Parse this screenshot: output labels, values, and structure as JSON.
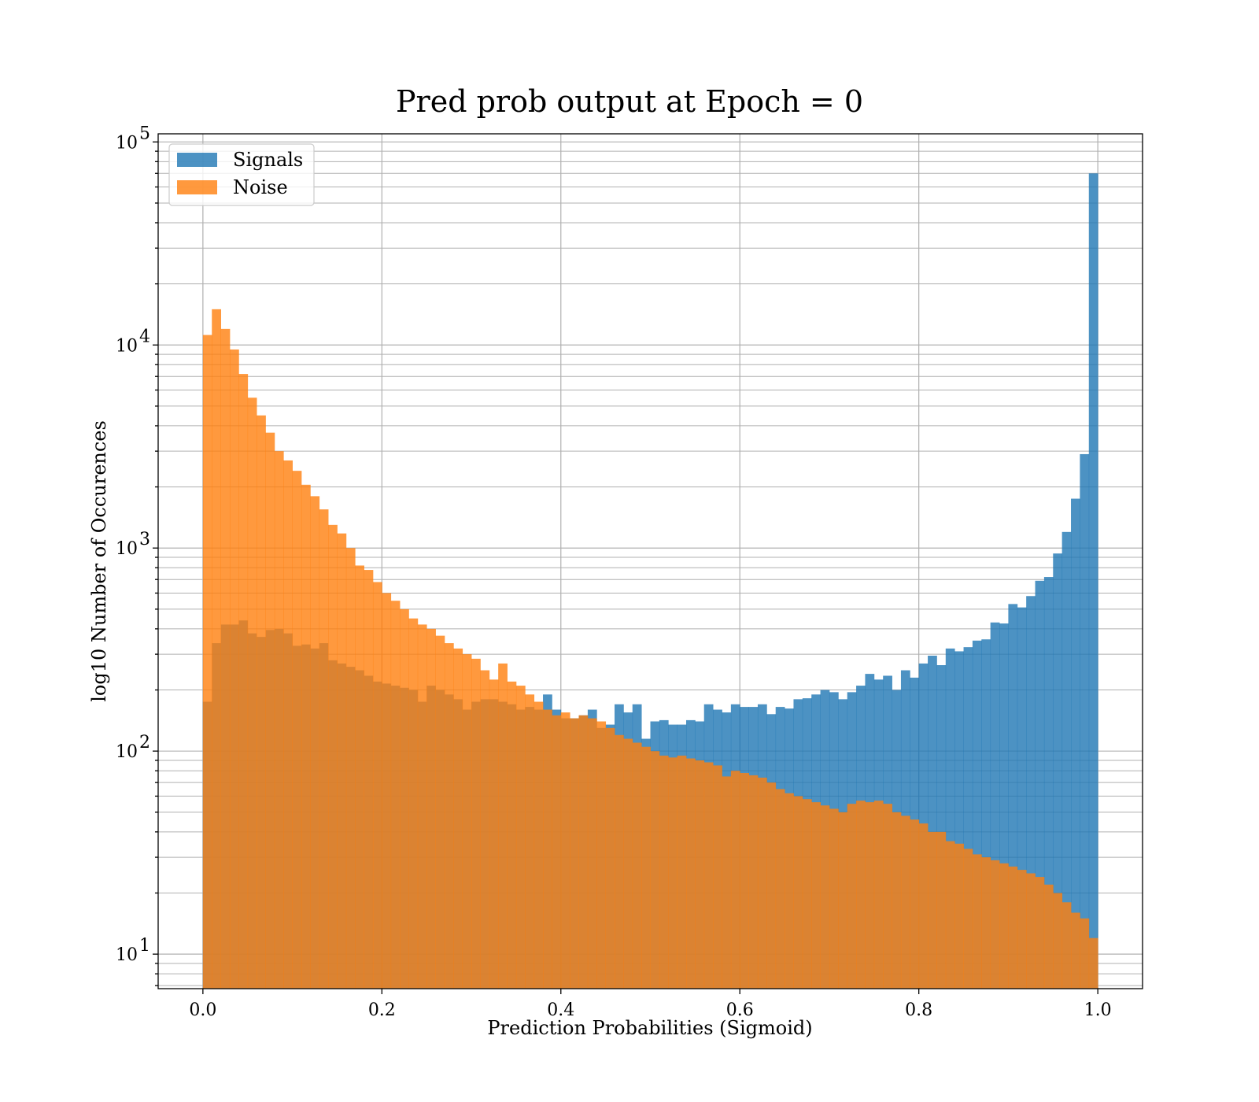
{
  "chart_data": {
    "type": "bar",
    "title": "Pred prob output at Epoch = 0",
    "xlabel": "Prediction Probabilities (Sigmoid)",
    "ylabel": "log10 Number of Occurences",
    "xlim": [
      -0.05,
      1.05
    ],
    "ylim_log10": [
      0.83,
      5.04
    ],
    "x_ticks": [
      0.0,
      0.2,
      0.4,
      0.6,
      0.8,
      1.0
    ],
    "x_tick_labels": [
      "0.0",
      "0.2",
      "0.4",
      "0.6",
      "0.8",
      "1.0"
    ],
    "y_ticks_log10": [
      1,
      2,
      3,
      4,
      5
    ],
    "y_tick_bases": [
      "10",
      "10",
      "10",
      "10",
      "10"
    ],
    "y_tick_exponents": [
      "1",
      "2",
      "3",
      "4",
      "5"
    ],
    "y_scale": "log",
    "grid": true,
    "legend_position": "upper-left",
    "bin_width": 0.01,
    "bin_start": 0.0,
    "series": [
      {
        "name": "Signals",
        "color": "#1f77b4",
        "opacity": 0.8,
        "values": [
          175,
          340,
          420,
          420,
          440,
          380,
          365,
          395,
          400,
          380,
          330,
          335,
          320,
          340,
          280,
          270,
          260,
          250,
          235,
          220,
          215,
          210,
          205,
          200,
          175,
          210,
          200,
          190,
          180,
          160,
          175,
          180,
          180,
          175,
          170,
          160,
          165,
          160,
          190,
          160,
          145,
          145,
          150,
          160,
          130,
          135,
          170,
          155,
          170,
          115,
          140,
          142,
          135,
          135,
          142,
          140,
          170,
          160,
          155,
          170,
          165,
          165,
          170,
          152,
          165,
          162,
          180,
          182,
          190,
          200,
          195,
          180,
          195,
          210,
          240,
          225,
          235,
          200,
          250,
          230,
          270,
          295,
          265,
          320,
          310,
          325,
          350,
          355,
          430,
          425,
          530,
          510,
          580,
          690,
          720,
          940,
          1200,
          1750,
          2900,
          70000
        ]
      },
      {
        "name": "Noise",
        "color": "#ff7f0e",
        "opacity": 0.8,
        "values": [
          11200,
          15000,
          12000,
          9500,
          7200,
          5500,
          4500,
          3700,
          3000,
          2700,
          2400,
          2050,
          1800,
          1550,
          1300,
          1180,
          1000,
          820,
          780,
          680,
          600,
          550,
          500,
          450,
          420,
          400,
          370,
          340,
          320,
          300,
          285,
          250,
          225,
          270,
          220,
          210,
          190,
          175,
          160,
          150,
          155,
          145,
          150,
          145,
          140,
          130,
          120,
          115,
          110,
          105,
          100,
          95,
          93,
          95,
          92,
          90,
          88,
          85,
          75,
          80,
          78,
          76,
          74,
          70,
          65,
          62,
          60,
          58,
          56,
          54,
          52,
          50,
          55,
          57,
          56,
          57,
          55,
          50,
          48,
          46,
          44,
          40,
          40,
          36,
          35,
          33,
          31,
          30,
          29,
          28,
          27,
          26,
          25,
          24,
          22,
          20,
          18,
          16,
          15,
          12
        ]
      }
    ]
  }
}
